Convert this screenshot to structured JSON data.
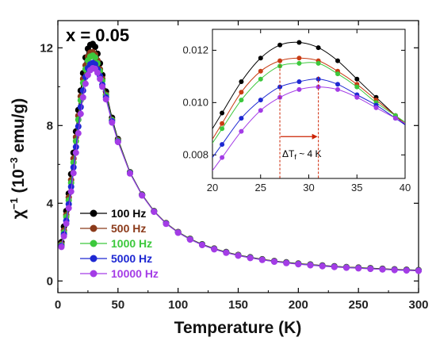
{
  "chart_data": [
    {
      "type": "scatter",
      "title": "",
      "annotation": "x = 0.05",
      "xlabel": "Temperature (K)",
      "ylabel": {
        "prefix": "χ",
        "sup": "−1",
        "mid": " (10",
        "sup2": "−3",
        "suffix": " emu/g)"
      },
      "xlim": [
        0,
        300
      ],
      "ylim": [
        -0.6,
        13.4
      ],
      "xticks": [
        0,
        50,
        100,
        150,
        200,
        250,
        300
      ],
      "yticks": [
        0,
        4,
        8,
        12
      ],
      "legend_position": "bottom-left",
      "series": [
        {
          "name": "100 Hz",
          "color": "#000000",
          "points": [
            [
              3,
              2.0
            ],
            [
              5,
              2.8
            ],
            [
              7,
              3.6
            ],
            [
              9,
              4.5
            ],
            [
              11,
              5.5
            ],
            [
              13,
              6.6
            ],
            [
              15,
              7.7
            ],
            [
              17,
              8.8
            ],
            [
              19,
              9.8
            ],
            [
              21,
              10.7
            ],
            [
              23,
              11.5
            ],
            [
              25,
              11.95
            ],
            [
              27,
              12.15
            ],
            [
              29,
              12.2
            ],
            [
              31,
              12.05
            ],
            [
              33,
              11.7
            ],
            [
              35,
              11.2
            ],
            [
              37,
              10.6
            ],
            [
              40,
              9.75
            ],
            [
              45,
              8.4
            ],
            [
              50,
              7.3
            ],
            [
              60,
              5.6
            ],
            [
              70,
              4.45
            ],
            [
              80,
              3.6
            ],
            [
              90,
              2.98
            ],
            [
              100,
              2.52
            ],
            [
              110,
              2.17
            ],
            [
              120,
              1.89
            ],
            [
              130,
              1.67
            ],
            [
              140,
              1.49
            ],
            [
              150,
              1.34
            ],
            [
              160,
              1.22
            ],
            [
              170,
              1.12
            ],
            [
              180,
              1.03
            ],
            [
              190,
              0.96
            ],
            [
              200,
              0.9
            ],
            [
              210,
              0.85
            ],
            [
              220,
              0.8
            ],
            [
              230,
              0.76
            ],
            [
              240,
              0.72
            ],
            [
              250,
              0.69
            ],
            [
              260,
              0.66
            ],
            [
              270,
              0.63
            ],
            [
              280,
              0.6
            ],
            [
              290,
              0.58
            ],
            [
              300,
              0.56
            ]
          ]
        },
        {
          "name": "500 Hz",
          "color": "#8B3A1A",
          "points": [
            [
              3,
              1.9
            ],
            [
              5,
              2.6
            ],
            [
              7,
              3.4
            ],
            [
              9,
              4.3
            ],
            [
              11,
              5.2
            ],
            [
              13,
              6.3
            ],
            [
              15,
              7.4
            ],
            [
              17,
              8.5
            ],
            [
              19,
              9.5
            ],
            [
              21,
              10.4
            ],
            [
              23,
              11.1
            ],
            [
              25,
              11.55
            ],
            [
              27,
              11.75
            ],
            [
              29,
              11.78
            ],
            [
              31,
              11.65
            ],
            [
              33,
              11.35
            ],
            [
              35,
              10.9
            ],
            [
              37,
              10.4
            ],
            [
              40,
              9.6
            ],
            [
              45,
              8.3
            ],
            [
              50,
              7.25
            ],
            [
              60,
              5.58
            ],
            [
              70,
              4.43
            ],
            [
              80,
              3.59
            ],
            [
              90,
              2.97
            ],
            [
              100,
              2.51
            ],
            [
              110,
              2.16
            ],
            [
              120,
              1.88
            ],
            [
              130,
              1.66
            ],
            [
              140,
              1.48
            ],
            [
              150,
              1.33
            ],
            [
              160,
              1.21
            ],
            [
              170,
              1.11
            ],
            [
              180,
              1.02
            ],
            [
              190,
              0.95
            ],
            [
              200,
              0.89
            ],
            [
              210,
              0.84
            ],
            [
              220,
              0.79
            ],
            [
              230,
              0.75
            ],
            [
              240,
              0.71
            ],
            [
              250,
              0.68
            ],
            [
              260,
              0.65
            ],
            [
              270,
              0.62
            ],
            [
              280,
              0.59
            ],
            [
              290,
              0.57
            ],
            [
              300,
              0.55
            ]
          ]
        },
        {
          "name": "1000 Hz",
          "color": "#3CC83C",
          "points": [
            [
              3,
              1.85
            ],
            [
              5,
              2.5
            ],
            [
              7,
              3.3
            ],
            [
              9,
              4.15
            ],
            [
              11,
              5.05
            ],
            [
              13,
              6.1
            ],
            [
              15,
              7.2
            ],
            [
              17,
              8.3
            ],
            [
              19,
              9.3
            ],
            [
              21,
              10.2
            ],
            [
              23,
              10.9
            ],
            [
              25,
              11.35
            ],
            [
              27,
              11.55
            ],
            [
              29,
              11.6
            ],
            [
              31,
              11.5
            ],
            [
              33,
              11.2
            ],
            [
              35,
              10.8
            ],
            [
              37,
              10.3
            ],
            [
              40,
              9.55
            ],
            [
              45,
              8.28
            ],
            [
              50,
              7.22
            ],
            [
              60,
              5.57
            ],
            [
              70,
              4.42
            ],
            [
              80,
              3.58
            ],
            [
              90,
              2.96
            ],
            [
              100,
              2.5
            ],
            [
              110,
              2.15
            ],
            [
              120,
              1.87
            ],
            [
              130,
              1.65
            ],
            [
              140,
              1.47
            ],
            [
              150,
              1.32
            ],
            [
              160,
              1.2
            ],
            [
              170,
              1.1
            ],
            [
              180,
              1.01
            ],
            [
              190,
              0.94
            ],
            [
              200,
              0.88
            ],
            [
              210,
              0.83
            ],
            [
              220,
              0.78
            ],
            [
              230,
              0.74
            ],
            [
              240,
              0.7
            ],
            [
              250,
              0.67
            ],
            [
              260,
              0.64
            ],
            [
              270,
              0.61
            ],
            [
              280,
              0.58
            ],
            [
              290,
              0.56
            ],
            [
              300,
              0.54
            ]
          ]
        },
        {
          "name": "5000 Hz",
          "color": "#1E28D2",
          "points": [
            [
              3,
              1.8
            ],
            [
              5,
              2.4
            ],
            [
              7,
              3.1
            ],
            [
              9,
              3.95
            ],
            [
              11,
              4.85
            ],
            [
              13,
              5.85
            ],
            [
              15,
              6.9
            ],
            [
              17,
              7.95
            ],
            [
              19,
              8.95
            ],
            [
              21,
              9.8
            ],
            [
              23,
              10.5
            ],
            [
              25,
              10.95
            ],
            [
              27,
              11.15
            ],
            [
              29,
              11.22
            ],
            [
              31,
              11.15
            ],
            [
              33,
              10.9
            ],
            [
              35,
              10.55
            ],
            [
              37,
              10.1
            ],
            [
              40,
              9.45
            ],
            [
              45,
              8.22
            ],
            [
              50,
              7.18
            ],
            [
              60,
              5.55
            ],
            [
              70,
              4.41
            ],
            [
              80,
              3.57
            ],
            [
              90,
              2.95
            ],
            [
              100,
              2.49
            ],
            [
              110,
              2.14
            ],
            [
              120,
              1.86
            ],
            [
              130,
              1.64
            ],
            [
              140,
              1.46
            ],
            [
              150,
              1.31
            ],
            [
              160,
              1.19
            ],
            [
              170,
              1.09
            ],
            [
              180,
              1.0
            ],
            [
              190,
              0.93
            ],
            [
              200,
              0.87
            ],
            [
              210,
              0.82
            ],
            [
              220,
              0.77
            ],
            [
              230,
              0.73
            ],
            [
              240,
              0.69
            ],
            [
              250,
              0.66
            ],
            [
              260,
              0.63
            ],
            [
              270,
              0.6
            ],
            [
              280,
              0.57
            ],
            [
              290,
              0.55
            ],
            [
              300,
              0.53
            ]
          ]
        },
        {
          "name": "10000 Hz",
          "color": "#A43CE6",
          "points": [
            [
              3,
              1.75
            ],
            [
              5,
              2.3
            ],
            [
              7,
              2.95
            ],
            [
              9,
              3.75
            ],
            [
              11,
              4.6
            ],
            [
              13,
              5.55
            ],
            [
              15,
              6.6
            ],
            [
              17,
              7.6
            ],
            [
              19,
              8.6
            ],
            [
              21,
              9.45
            ],
            [
              23,
              10.15
            ],
            [
              25,
              10.6
            ],
            [
              27,
              10.85
            ],
            [
              29,
              10.95
            ],
            [
              31,
              10.92
            ],
            [
              33,
              10.72
            ],
            [
              35,
              10.4
            ],
            [
              37,
              10.0
            ],
            [
              40,
              9.35
            ],
            [
              45,
              8.15
            ],
            [
              50,
              7.15
            ],
            [
              60,
              5.53
            ],
            [
              70,
              4.4
            ],
            [
              80,
              3.56
            ],
            [
              90,
              2.94
            ],
            [
              100,
              2.48
            ],
            [
              110,
              2.13
            ],
            [
              120,
              1.85
            ],
            [
              130,
              1.63
            ],
            [
              140,
              1.45
            ],
            [
              150,
              1.3
            ],
            [
              160,
              1.18
            ],
            [
              170,
              1.08
            ],
            [
              180,
              0.99
            ],
            [
              190,
              0.92
            ],
            [
              200,
              0.86
            ],
            [
              210,
              0.81
            ],
            [
              220,
              0.76
            ],
            [
              230,
              0.72
            ],
            [
              240,
              0.68
            ],
            [
              250,
              0.65
            ],
            [
              260,
              0.62
            ],
            [
              270,
              0.59
            ],
            [
              280,
              0.56
            ],
            [
              290,
              0.54
            ],
            [
              300,
              0.52
            ]
          ]
        }
      ]
    },
    {
      "type": "scatter",
      "title": "",
      "xlabel": "",
      "ylabel": "",
      "xlim": [
        20,
        40
      ],
      "ylim": [
        0.0071,
        0.0128
      ],
      "xticks": [
        20,
        25,
        30,
        35,
        40
      ],
      "xtick_labels": [
        "20",
        "25",
        "30",
        "35",
        "40"
      ],
      "yticks": [
        0.008,
        0.01,
        0.012
      ],
      "ytick_labels": [
        "0.008",
        "0.010",
        "0.012"
      ],
      "annotation": {
        "text": "ΔT",
        "sub": "f",
        "rest": " ~ 4 K",
        "arrow_from": 27,
        "arrow_to": 31,
        "y": 0.0087,
        "color": "#CC2200"
      },
      "series": [
        {
          "name": "100 Hz",
          "color": "#000000",
          "x": [
            21,
            23,
            25,
            27,
            29,
            31,
            33,
            35,
            37,
            39
          ],
          "y": [
            0.0096,
            0.0108,
            0.0117,
            0.0122,
            0.0123,
            0.0121,
            0.0116,
            0.0109,
            0.0102,
            0.0095
          ]
        },
        {
          "name": "500 Hz",
          "color": "#C83C14",
          "x": [
            21,
            23,
            25,
            27,
            29,
            31,
            33,
            35,
            37,
            39
          ],
          "y": [
            0.0092,
            0.0104,
            0.0112,
            0.0116,
            0.0117,
            0.0116,
            0.0112,
            0.0107,
            0.0101,
            0.0095
          ]
        },
        {
          "name": "1000 Hz",
          "color": "#3CC83C",
          "x": [
            21,
            23,
            25,
            27,
            29,
            31,
            33,
            35,
            37,
            39
          ],
          "y": [
            0.009,
            0.0101,
            0.0109,
            0.0114,
            0.0115,
            0.0115,
            0.0111,
            0.0106,
            0.01,
            0.0095
          ]
        },
        {
          "name": "5000 Hz",
          "color": "#1E28D2",
          "x": [
            21,
            23,
            25,
            27,
            29,
            31,
            33,
            35,
            37,
            39
          ],
          "y": [
            0.0084,
            0.0094,
            0.0101,
            0.0106,
            0.0108,
            0.0109,
            0.0107,
            0.0103,
            0.0099,
            0.0094
          ]
        },
        {
          "name": "10000 Hz",
          "color": "#A43CE6",
          "x": [
            21,
            23,
            25,
            27,
            29,
            31,
            33,
            35,
            37,
            39
          ],
          "y": [
            0.0079,
            0.0089,
            0.0097,
            0.0102,
            0.0105,
            0.0106,
            0.0105,
            0.0102,
            0.0098,
            0.0094
          ]
        }
      ]
    }
  ]
}
